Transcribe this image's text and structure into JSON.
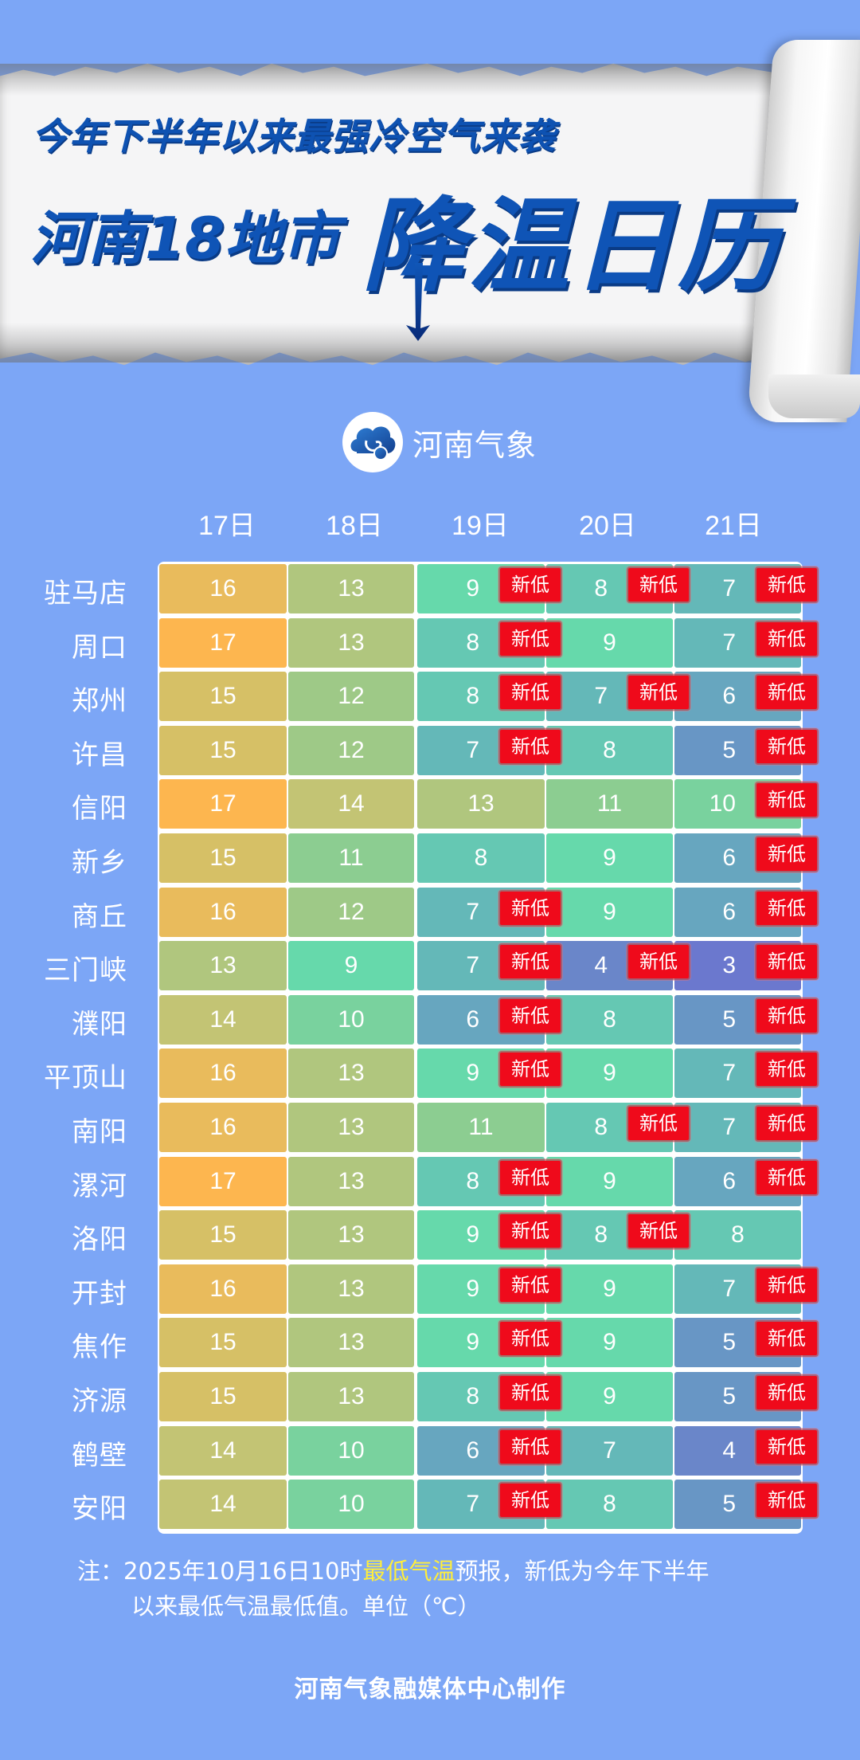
{
  "header": {
    "subtitle": "今年下半年以来最强冷空气来袭",
    "title_prefix": "河南18地市",
    "title_emphasis": "降温日历"
  },
  "logo": {
    "icon": "cloud-elephant-logo-icon",
    "text": "河南气象"
  },
  "table": {
    "columns": [
      "17日",
      "18日",
      "19日",
      "20日",
      "21日"
    ],
    "badge_label": "新低",
    "rows": [
      {
        "city": "驻马店",
        "temps": [
          16,
          13,
          9,
          8,
          7
        ],
        "new_low": [
          false,
          false,
          true,
          true,
          true
        ]
      },
      {
        "city": "周口",
        "temps": [
          17,
          13,
          8,
          9,
          7
        ],
        "new_low": [
          false,
          false,
          true,
          false,
          true
        ]
      },
      {
        "city": "郑州",
        "temps": [
          15,
          12,
          8,
          7,
          6
        ],
        "new_low": [
          false,
          false,
          true,
          true,
          true
        ]
      },
      {
        "city": "许昌",
        "temps": [
          15,
          12,
          7,
          8,
          5
        ],
        "new_low": [
          false,
          false,
          true,
          false,
          true
        ]
      },
      {
        "city": "信阳",
        "temps": [
          17,
          14,
          13,
          11,
          10
        ],
        "new_low": [
          false,
          false,
          false,
          false,
          true
        ]
      },
      {
        "city": "新乡",
        "temps": [
          15,
          11,
          8,
          9,
          6
        ],
        "new_low": [
          false,
          false,
          false,
          false,
          true
        ]
      },
      {
        "city": "商丘",
        "temps": [
          16,
          12,
          7,
          9,
          6
        ],
        "new_low": [
          false,
          false,
          true,
          false,
          true
        ]
      },
      {
        "city": "三门峡",
        "temps": [
          13,
          9,
          7,
          4,
          3
        ],
        "new_low": [
          false,
          false,
          true,
          true,
          true
        ]
      },
      {
        "city": "濮阳",
        "temps": [
          14,
          10,
          6,
          8,
          5
        ],
        "new_low": [
          false,
          false,
          true,
          false,
          true
        ]
      },
      {
        "city": "平顶山",
        "temps": [
          16,
          13,
          9,
          9,
          7
        ],
        "new_low": [
          false,
          false,
          true,
          false,
          true
        ]
      },
      {
        "city": "南阳",
        "temps": [
          16,
          13,
          11,
          8,
          7
        ],
        "new_low": [
          false,
          false,
          false,
          true,
          true
        ]
      },
      {
        "city": "漯河",
        "temps": [
          17,
          13,
          8,
          9,
          6
        ],
        "new_low": [
          false,
          false,
          true,
          false,
          true
        ]
      },
      {
        "city": "洛阳",
        "temps": [
          15,
          13,
          9,
          8,
          8
        ],
        "new_low": [
          false,
          false,
          true,
          true,
          false
        ]
      },
      {
        "city": "开封",
        "temps": [
          16,
          13,
          9,
          9,
          7
        ],
        "new_low": [
          false,
          false,
          true,
          false,
          true
        ]
      },
      {
        "city": "焦作",
        "temps": [
          15,
          13,
          9,
          9,
          5
        ],
        "new_low": [
          false,
          false,
          true,
          false,
          true
        ]
      },
      {
        "city": "济源",
        "temps": [
          15,
          13,
          8,
          9,
          5
        ],
        "new_low": [
          false,
          false,
          true,
          false,
          true
        ]
      },
      {
        "city": "鹤壁",
        "temps": [
          14,
          10,
          6,
          7,
          4
        ],
        "new_low": [
          false,
          false,
          true,
          false,
          true
        ]
      },
      {
        "city": "安阳",
        "temps": [
          14,
          10,
          7,
          8,
          5
        ],
        "new_low": [
          false,
          false,
          true,
          false,
          true
        ]
      }
    ],
    "temp_colors": {
      "17": "#fdb64f",
      "16": "#e9bb5c",
      "15": "#d6c066",
      "14": "#c3c474",
      "13": "#b0c67e",
      "12": "#9ec987",
      "11": "#8ccd91",
      "10": "#79d29e",
      "9": "#66d9ab",
      "8": "#65c8b3",
      "7": "#64b8b8",
      "6": "#67a6bf",
      "5": "#6896c5",
      "4": "#6a86c9",
      "3": "#6b78ce"
    },
    "badge_color": "#ef0a1b"
  },
  "note": {
    "prefix": "注：2025年10月16日10时",
    "highlight": "最低气温",
    "suffix": "预报，新低为今年下半年",
    "line2": "以来最低气温最低值。单位（℃）",
    "highlight_color": "#ffee3a"
  },
  "credit": "河南气象融媒体中心制作",
  "colors": {
    "background": "#7ca6f6",
    "title_blue": "#0f54b6"
  }
}
